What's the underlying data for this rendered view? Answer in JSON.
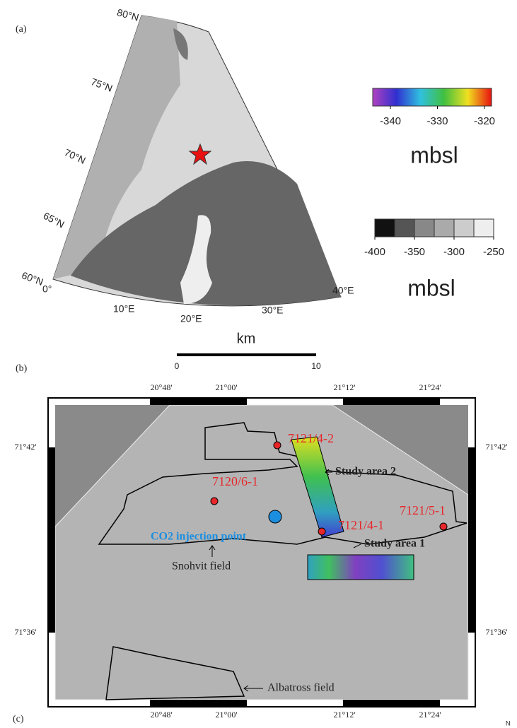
{
  "panel_a": {
    "label": "(a)",
    "lat_labels": [
      "80°N",
      "75°N",
      "70°N",
      "65°N",
      "60°N"
    ],
    "lon_labels": [
      "0°",
      "10°E",
      "20°E",
      "30°E",
      "40°E"
    ],
    "colorbars": [
      {
        "ticks": [
          -340,
          -330,
          -320
        ],
        "unit": "mbsl"
      },
      {
        "ticks": [
          -400,
          -350,
          -300,
          -250
        ],
        "unit": "mbsl"
      }
    ],
    "scale": {
      "unit": "km",
      "ticks": [
        0,
        10
      ]
    }
  },
  "panel_b": {
    "label": "(b)",
    "top_lon_labels": [
      "20°48'",
      "21°00'",
      "21°12'",
      "21°24'"
    ],
    "bottom_lon_labels": [
      "20°48'",
      "21°00'",
      "21°12'",
      "21°24'"
    ],
    "left_lat_labels": [
      "71°42'",
      "71°36'"
    ],
    "right_lat_labels": [
      "71°42'",
      "71°36'"
    ],
    "wells": [
      "7121/4-2",
      "7120/6-1",
      "7121/5-1",
      "7121/4-1"
    ],
    "injection_point": "CO2 injection point",
    "study_areas": [
      "Study area 2",
      "Study area 1"
    ],
    "fields": [
      "Snohvit field",
      "Albatross field"
    ]
  },
  "panel_c": {
    "label": "(c)",
    "north": "N"
  }
}
